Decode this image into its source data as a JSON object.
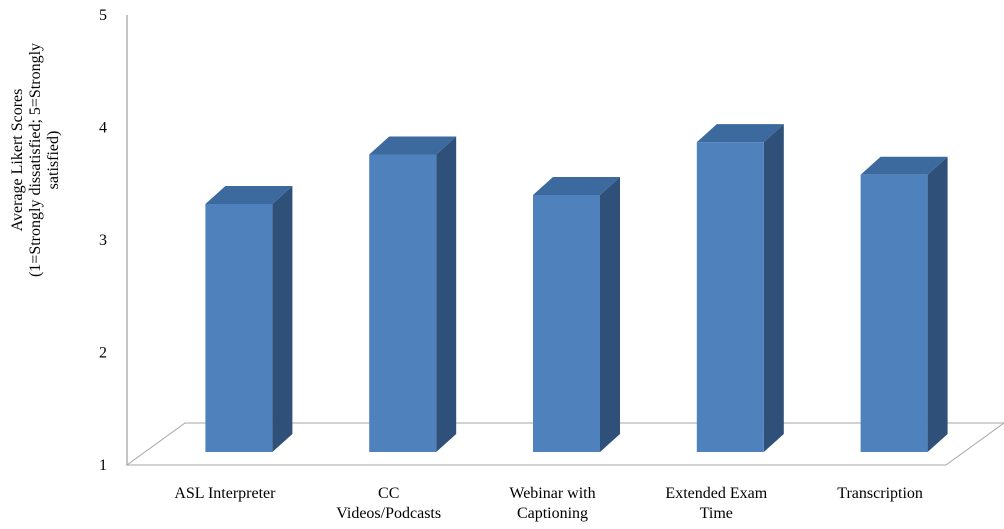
{
  "chart_data": {
    "type": "bar",
    "style": "3d-column",
    "title": "",
    "xlabel": "",
    "ylabel_lines": [
      "Average Likert Scores",
      "(1=Strongly dissatisfied; 5=Strongly",
      "satisfied)"
    ],
    "categories": [
      [
        "ASL Interpreter"
      ],
      [
        "CC",
        "Videos/Podcasts"
      ],
      [
        "Webinar with",
        "Captioning"
      ],
      [
        "Extended Exam",
        "Time"
      ],
      [
        "Transcription"
      ]
    ],
    "values": [
      3.32,
      3.76,
      3.4,
      3.87,
      3.58
    ],
    "ylim": [
      1,
      5
    ],
    "yticks": [
      "1",
      "2",
      "3",
      "4",
      "5"
    ],
    "grid": false,
    "legend": "none",
    "colors": {
      "front": "#4f81bd",
      "top": "#3c6a9e",
      "side": "#2f5078",
      "floor": "#a6a6a6",
      "axis": "#8c8c8c"
    }
  }
}
